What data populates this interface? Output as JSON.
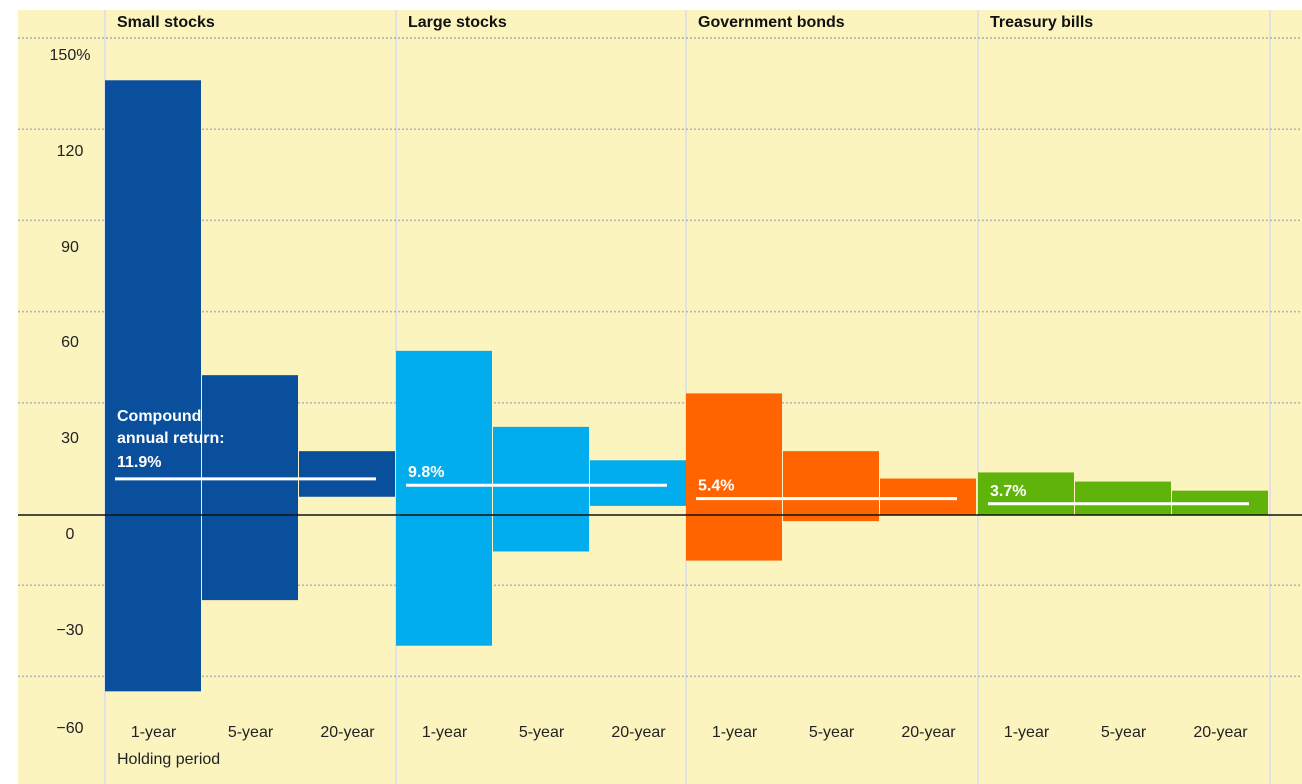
{
  "chart_data": {
    "type": "bar",
    "subtype": "range",
    "background_color": "#fbf4bf",
    "y_ticks": [
      "150%",
      "120",
      "90",
      "60",
      "30",
      "0",
      "−30",
      "−60"
    ],
    "ylim": [
      -60,
      150
    ],
    "grid": true,
    "xlabel": "Holding period",
    "annotation_prefix": "Compound\nannual return:",
    "groups": [
      {
        "name": "Small stocks",
        "color": "#0a4f9c",
        "compound_annual_return": 11.9,
        "compound_annual_return_label": "11.9%",
        "categories": [
          "1-year",
          "5-year",
          "20-year"
        ],
        "ranges": [
          [
            -58,
            143
          ],
          [
            -28,
            46
          ],
          [
            6,
            21
          ]
        ]
      },
      {
        "name": "Large stocks",
        "color": "#01aded",
        "compound_annual_return": 9.8,
        "compound_annual_return_label": "9.8%",
        "categories": [
          "1-year",
          "5-year",
          "20-year"
        ],
        "ranges": [
          [
            -43,
            54
          ],
          [
            -12,
            29
          ],
          [
            3,
            18
          ]
        ]
      },
      {
        "name": "Government bonds",
        "color": "#ff6400",
        "compound_annual_return": 5.4,
        "compound_annual_return_label": "5.4%",
        "categories": [
          "1-year",
          "5-year",
          "20-year"
        ],
        "ranges": [
          [
            -15,
            40
          ],
          [
            -2,
            21
          ],
          [
            0,
            12
          ]
        ]
      },
      {
        "name": "Treasury bills",
        "color": "#5fb30a",
        "compound_annual_return": 3.7,
        "compound_annual_return_label": "3.7%",
        "categories": [
          "1-year",
          "5-year",
          "20-year"
        ],
        "ranges": [
          [
            0,
            14
          ],
          [
            0,
            11
          ],
          [
            0,
            8
          ]
        ]
      }
    ]
  }
}
